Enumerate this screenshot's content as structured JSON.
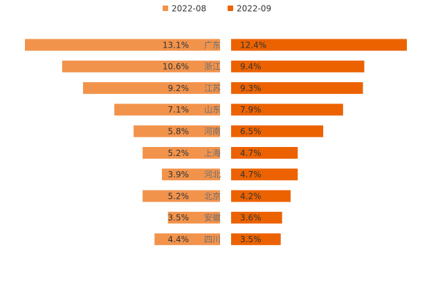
{
  "chart_data": {
    "type": "bar",
    "orientation": "horizontal-butterfly",
    "title": "",
    "xlabel": "",
    "ylabel": "",
    "categories": [
      "广东",
      "浙江",
      "江苏",
      "山东",
      "河南",
      "上海",
      "河北",
      "北京",
      "安徽",
      "四川"
    ],
    "series": [
      {
        "name": "2022-08",
        "color": "#f2934c",
        "side": "left",
        "values": [
          13.1,
          10.6,
          9.2,
          7.1,
          5.8,
          5.2,
          3.9,
          5.2,
          3.5,
          4.4
        ],
        "labels": [
          "13.1%",
          "10.6%",
          "9.2%",
          "7.1%",
          "5.8%",
          "5.2%",
          "3.9%",
          "5.2%",
          "3.5%",
          "4.4%"
        ]
      },
      {
        "name": "2022-09",
        "color": "#ec6200",
        "side": "right",
        "values": [
          12.4,
          9.4,
          9.3,
          7.9,
          6.5,
          4.7,
          4.7,
          4.2,
          3.6,
          3.5
        ],
        "labels": [
          "12.4%",
          "9.4%",
          "9.3%",
          "7.9%",
          "6.5%",
          "4.7%",
          "4.7%",
          "4.2%",
          "3.6%",
          "3.5%"
        ]
      }
    ],
    "legend": "top-center",
    "grid": false
  }
}
